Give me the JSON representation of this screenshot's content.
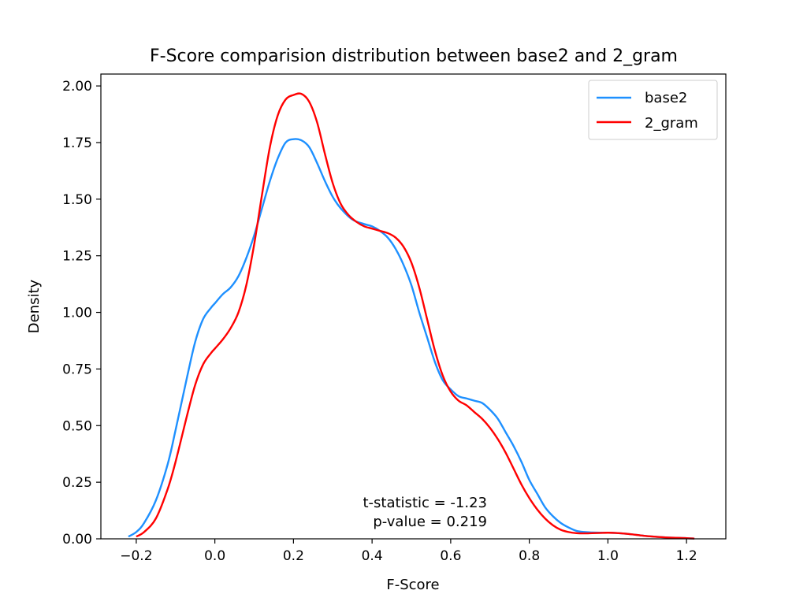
{
  "chart_data": {
    "type": "line",
    "title": "F-Score comparision distribution between base2 and 2_gram",
    "xlabel": "F-Score",
    "ylabel": "Density",
    "xlim": [
      -0.29,
      1.3
    ],
    "ylim": [
      0.0,
      2.0525
    ],
    "x_ticks": [
      -0.2,
      0.0,
      0.2,
      0.4,
      0.6,
      0.8,
      1.0,
      1.2
    ],
    "x_tick_labels": [
      "−0.2",
      "0.0",
      "0.2",
      "0.4",
      "0.6",
      "0.8",
      "1.0",
      "1.2"
    ],
    "y_ticks": [
      0.0,
      0.25,
      0.5,
      0.75,
      1.0,
      1.25,
      1.5,
      1.75,
      2.0
    ],
    "y_tick_labels": [
      "0.00",
      "0.25",
      "0.50",
      "0.75",
      "1.00",
      "1.25",
      "1.50",
      "1.75",
      "2.00"
    ],
    "grid": false,
    "legend_position": "top-right",
    "annotations": [
      "t-statistic = -1.23",
      "p-value = 0.219"
    ],
    "series": [
      {
        "name": "base2",
        "color": "#1e90ff",
        "x": [
          -0.22,
          -0.2,
          -0.18,
          -0.15,
          -0.12,
          -0.1,
          -0.07,
          -0.05,
          -0.03,
          -0.01,
          0.0,
          0.02,
          0.04,
          0.06,
          0.08,
          0.1,
          0.12,
          0.14,
          0.16,
          0.18,
          0.2,
          0.22,
          0.24,
          0.26,
          0.28,
          0.3,
          0.32,
          0.35,
          0.38,
          0.4,
          0.42,
          0.44,
          0.46,
          0.48,
          0.5,
          0.52,
          0.54,
          0.56,
          0.58,
          0.6,
          0.62,
          0.64,
          0.66,
          0.68,
          0.7,
          0.72,
          0.74,
          0.76,
          0.78,
          0.8,
          0.82,
          0.84,
          0.86,
          0.88,
          0.9,
          0.92,
          0.94,
          0.96,
          0.98,
          1.0,
          1.02,
          1.05,
          1.08,
          1.1,
          1.15,
          1.2,
          1.22
        ],
        "y": [
          0.01,
          0.03,
          0.07,
          0.17,
          0.33,
          0.48,
          0.72,
          0.87,
          0.97,
          1.02,
          1.04,
          1.08,
          1.11,
          1.16,
          1.24,
          1.34,
          1.46,
          1.58,
          1.68,
          1.75,
          1.765,
          1.76,
          1.73,
          1.66,
          1.58,
          1.51,
          1.46,
          1.41,
          1.39,
          1.38,
          1.36,
          1.33,
          1.28,
          1.21,
          1.12,
          1.0,
          0.89,
          0.78,
          0.7,
          0.66,
          0.63,
          0.62,
          0.61,
          0.6,
          0.57,
          0.53,
          0.47,
          0.41,
          0.34,
          0.26,
          0.2,
          0.14,
          0.1,
          0.07,
          0.05,
          0.035,
          0.03,
          0.028,
          0.027,
          0.027,
          0.026,
          0.022,
          0.016,
          0.012,
          0.006,
          0.003,
          0.001
        ]
      },
      {
        "name": "2_gram",
        "color": "#ff0000",
        "x": [
          -0.2,
          -0.18,
          -0.15,
          -0.12,
          -0.1,
          -0.07,
          -0.05,
          -0.03,
          -0.01,
          0.0,
          0.02,
          0.04,
          0.06,
          0.08,
          0.1,
          0.12,
          0.14,
          0.16,
          0.18,
          0.2,
          0.22,
          0.24,
          0.26,
          0.28,
          0.3,
          0.32,
          0.34,
          0.36,
          0.38,
          0.4,
          0.42,
          0.44,
          0.46,
          0.48,
          0.5,
          0.52,
          0.54,
          0.56,
          0.58,
          0.6,
          0.62,
          0.64,
          0.66,
          0.68,
          0.7,
          0.72,
          0.74,
          0.76,
          0.78,
          0.8,
          0.82,
          0.84,
          0.86,
          0.88,
          0.9,
          0.92,
          0.94,
          0.96,
          0.98,
          1.0,
          1.02,
          1.05,
          1.08,
          1.1,
          1.15,
          1.2,
          1.22
        ],
        "y": [
          0.01,
          0.03,
          0.09,
          0.22,
          0.34,
          0.55,
          0.68,
          0.77,
          0.82,
          0.84,
          0.88,
          0.93,
          1.0,
          1.12,
          1.3,
          1.52,
          1.73,
          1.87,
          1.94,
          1.96,
          1.965,
          1.93,
          1.84,
          1.7,
          1.57,
          1.48,
          1.43,
          1.4,
          1.38,
          1.37,
          1.36,
          1.35,
          1.33,
          1.29,
          1.22,
          1.11,
          0.97,
          0.83,
          0.72,
          0.65,
          0.61,
          0.59,
          0.56,
          0.53,
          0.49,
          0.44,
          0.38,
          0.31,
          0.24,
          0.18,
          0.13,
          0.09,
          0.06,
          0.04,
          0.03,
          0.025,
          0.024,
          0.025,
          0.026,
          0.027,
          0.026,
          0.022,
          0.016,
          0.012,
          0.006,
          0.003,
          0.001
        ]
      }
    ]
  }
}
